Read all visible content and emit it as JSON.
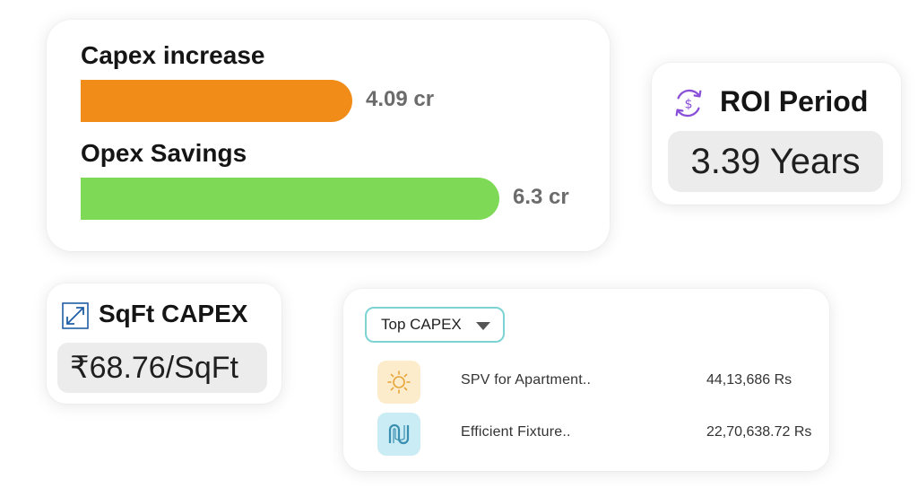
{
  "capex_card": {
    "capex": {
      "label": "Capex increase",
      "value": "4.09 cr",
      "fraction": 0.649,
      "color": "#f28c18"
    },
    "opex": {
      "label": "Opex Savings",
      "value": "6.3 cr",
      "fraction": 1.0,
      "color": "#7ed957"
    }
  },
  "roi_card": {
    "icon": "dollar-exchange-icon",
    "title": "ROI Period",
    "value": "3.39 Years",
    "accent": "#8a4fd8"
  },
  "sqft_card": {
    "icon": "resize-diagonal-icon",
    "title": "SqFt CAPEX",
    "value": "₹68.76/SqFt",
    "accent": "#1f5fa8"
  },
  "top_capex": {
    "dropdown": {
      "selected": "Top CAPEX",
      "border_color": "#7dd3d3"
    },
    "rows": [
      {
        "icon": "sun-icon",
        "icon_bg": "#fdeccc",
        "name": "SPV for Apartment..",
        "amount": "44,13,686 Rs"
      },
      {
        "icon": "pipes-icon",
        "icon_bg": "#c9ecf5",
        "name": "Efficient Fixture..",
        "amount": "22,70,638.72 Rs"
      }
    ]
  }
}
